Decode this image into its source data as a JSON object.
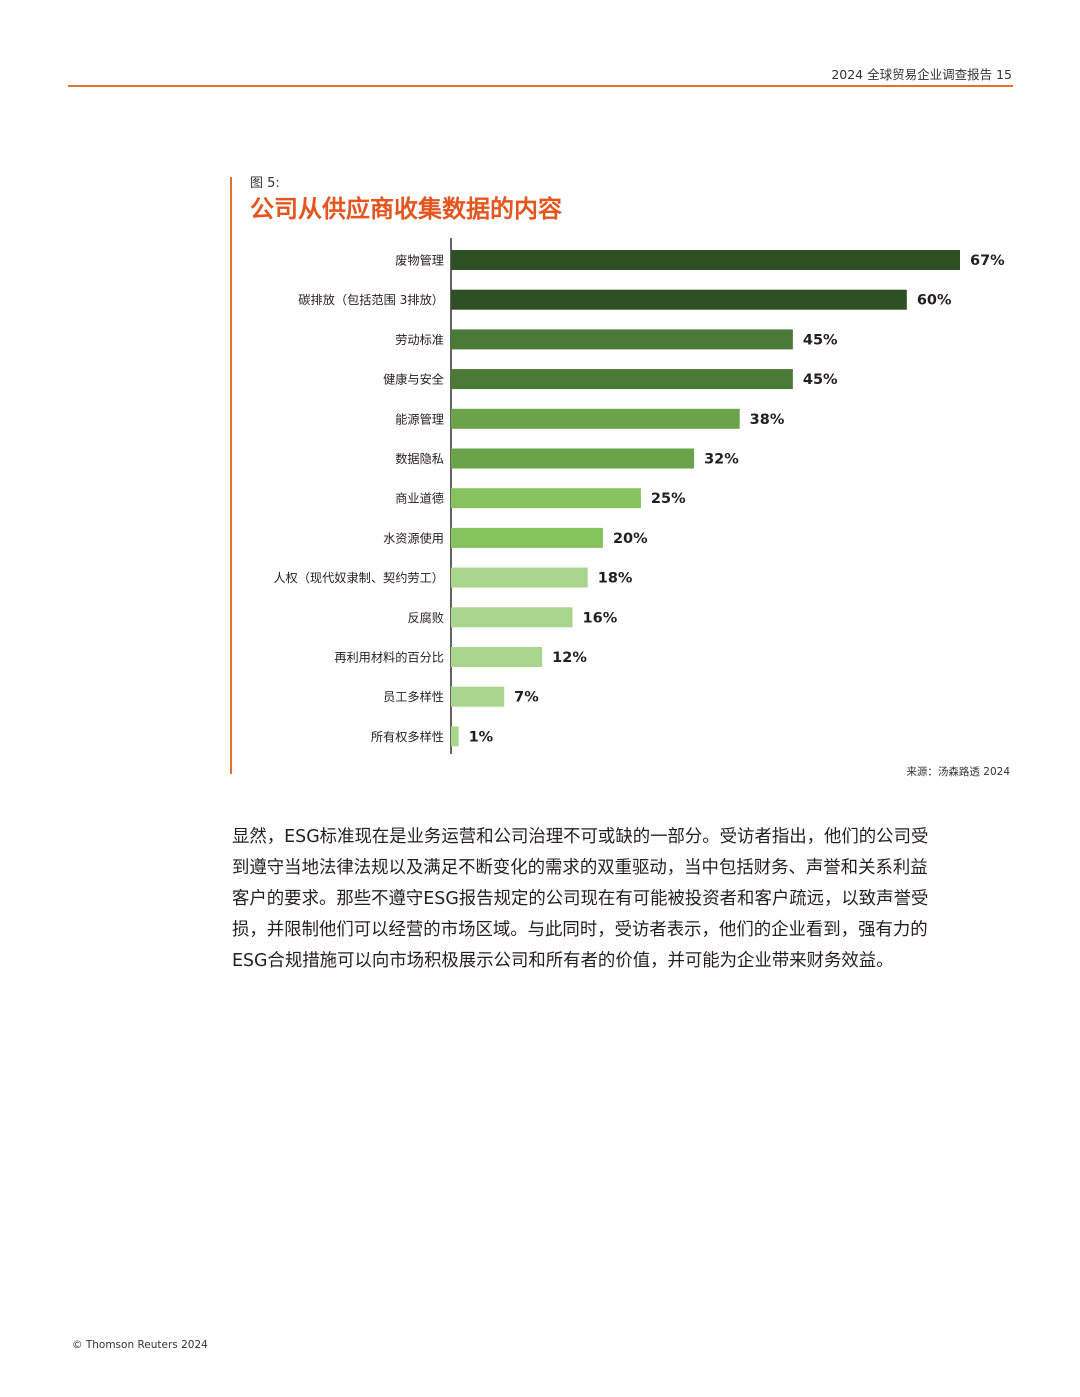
{
  "header": {
    "title": "2024 全球贸易企业调查报告 15",
    "rule_color": "#e3702b"
  },
  "figure": {
    "label": "图 5:",
    "title": "公司从供应商收集数据的内容",
    "title_color": "#e3561f",
    "source": "来源：汤森路透 2024"
  },
  "chart_data": {
    "type": "bar",
    "orientation": "horizontal",
    "categories": [
      "废物管理",
      "碳排放（包括范围 3排放）",
      "劳动标准",
      "健康与安全",
      "能源管理",
      "数据隐私",
      "商业道德",
      "水资源使用",
      "人权（现代奴隶制、契约劳工）",
      "反腐败",
      "再利用材料的百分比",
      "员工多样性",
      "所有权多样性"
    ],
    "values": [
      67,
      60,
      45,
      45,
      38,
      32,
      25,
      20,
      18,
      16,
      12,
      7,
      1
    ],
    "value_labels": [
      "67%",
      "60%",
      "45%",
      "45%",
      "38%",
      "32%",
      "25%",
      "20%",
      "18%",
      "16%",
      "12%",
      "7%",
      "1%"
    ],
    "colors": [
      "#2f4f24",
      "#2f4f24",
      "#4a7a35",
      "#4a7a35",
      "#6aa34a",
      "#6aa34a",
      "#86c35f",
      "#86c35f",
      "#a8d68d",
      "#a8d68d",
      "#a8d68d",
      "#a8d68d",
      "#a8d68d"
    ],
    "xlim": [
      0,
      67
    ],
    "grid": false,
    "legend": "none"
  },
  "body": {
    "paragraph": "显然，ESG标准现在是业务运营和公司治理不可或缺的一部分。受访者指出，他们的公司受到遵守当地法律法规以及满足不断变化的需求的双重驱动，当中包括财务、声誉和关系利益客户的要求。那些不遵守ESG报告规定的公司现在有可能被投资者和客户疏远，以致声誉受损，并限制他们可以经营的市场区域。与此同时，受访者表示，他们的企业看到，强有力的ESG合规措施可以向市场积极展示公司和所有者的价值，并可能为企业带来财务效益。"
  },
  "footer": {
    "copyright": "© Thomson Reuters 2024"
  }
}
